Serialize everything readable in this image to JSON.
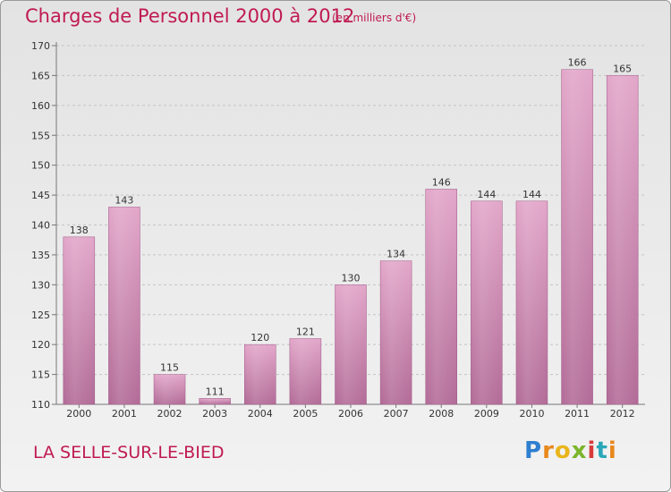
{
  "header": {
    "title": "Charges de Personnel 2000 à 2012",
    "subtitle": "(en milliers d'€)"
  },
  "footer": {
    "location": "LA SELLE-SUR-LE-BIED",
    "logo": "Proxiti"
  },
  "colors": {
    "title": "#c01a52",
    "bar_top": "#e2a6c9",
    "bar_bottom": "#b26b97"
  },
  "chart_data": {
    "type": "bar",
    "title": "Charges de Personnel 2000 à 2012",
    "subtitle": "(en milliers d'€)",
    "categories": [
      "2000",
      "2001",
      "2002",
      "2003",
      "2004",
      "2005",
      "2006",
      "2007",
      "2008",
      "2009",
      "2010",
      "2011",
      "2012"
    ],
    "values": [
      138,
      143,
      115,
      111,
      120,
      121,
      130,
      134,
      146,
      144,
      144,
      166,
      165
    ],
    "data_labels": [
      "138",
      "143",
      "115",
      "111",
      "120",
      "121",
      "130",
      "134",
      "146",
      "144",
      "144",
      "166",
      "165"
    ],
    "ylim": [
      110,
      170
    ],
    "yticks": [
      110,
      115,
      120,
      125,
      130,
      135,
      140,
      145,
      150,
      155,
      160,
      165,
      170
    ],
    "grid": "horizontal dashed",
    "legend": "none"
  }
}
